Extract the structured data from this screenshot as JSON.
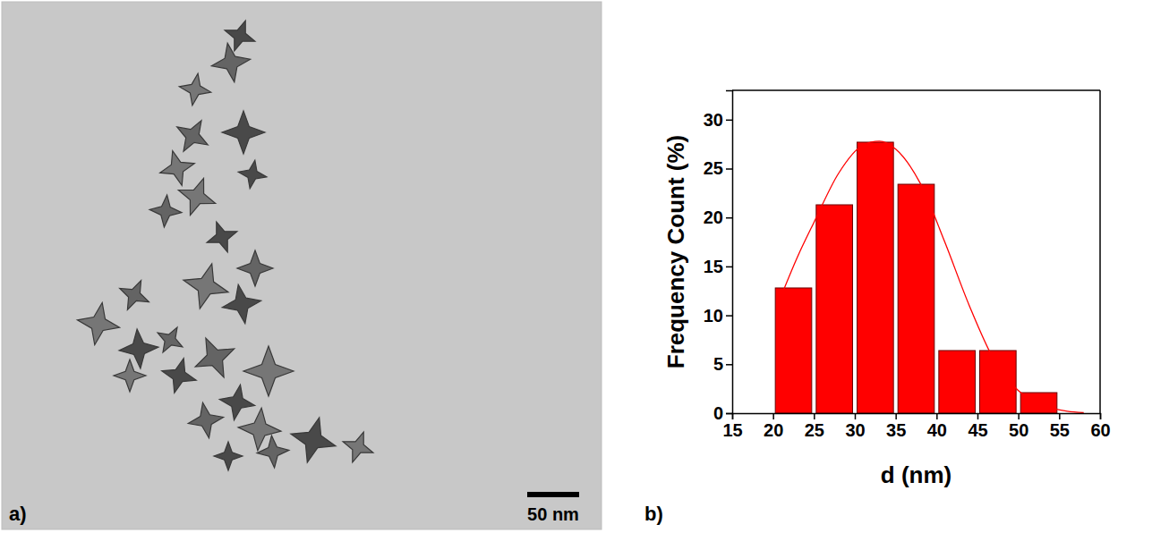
{
  "micrograph": {
    "panel_label": "a)",
    "scale_bar_label": "50 nm"
  },
  "chart_data": {
    "type": "histogram",
    "panel_label": "b)",
    "xlabel": "d (nm)",
    "ylabel": "Frequency Count (%)",
    "bins": [
      20,
      25,
      30,
      35,
      40,
      45,
      50,
      55
    ],
    "series": [
      {
        "type": "bar",
        "color": "#ff0000",
        "values": [
          12.8,
          21.3,
          27.7,
          23.4,
          6.4,
          6.4,
          2.1
        ]
      },
      {
        "type": "line",
        "color": "#ff0000",
        "x": [
          21,
          23,
          25,
          28,
          31,
          33,
          35,
          38,
          41,
          44,
          47,
          50,
          53,
          56,
          58
        ],
        "values": [
          12,
          16,
          19.5,
          24.5,
          27.4,
          27.8,
          27,
          23.5,
          17.5,
          11,
          5.5,
          2.3,
          0.8,
          0.2,
          0.05
        ]
      }
    ],
    "xlim": [
      15,
      60
    ],
    "xticks": [
      15,
      20,
      25,
      30,
      35,
      40,
      45,
      50,
      55,
      60
    ],
    "ylim": [
      0,
      33
    ],
    "yticks": [
      0,
      5,
      10,
      15,
      20,
      25,
      30
    ]
  }
}
